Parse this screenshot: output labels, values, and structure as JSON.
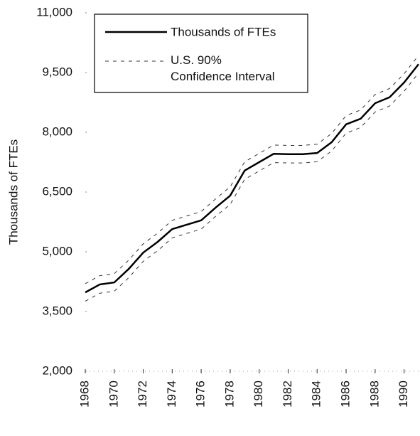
{
  "chart_data": {
    "type": "line",
    "y_label": "Thousands of FTEs",
    "x": [
      1968,
      1969,
      1970,
      1971,
      1972,
      1973,
      1974,
      1975,
      1976,
      1977,
      1978,
      1979,
      1980,
      1981,
      1982,
      1983,
      1984,
      1985,
      1986,
      1987,
      1988,
      1989,
      1990,
      1991
    ],
    "series": [
      {
        "name": "Thousands of FTEs",
        "color": "#000000",
        "values": [
          3980,
          4180,
          4230,
          4570,
          4980,
          5250,
          5570,
          5680,
          5790,
          6110,
          6410,
          7040,
          7250,
          7460,
          7450,
          7450,
          7480,
          7750,
          8200,
          8340,
          8730,
          8880,
          9250,
          9710
        ]
      }
    ],
    "confidence_interval": {
      "name": "U.S. 90%\nConfidence Interval",
      "color": "#333333",
      "upper": [
        4200,
        4400,
        4450,
        4790,
        5200,
        5470,
        5790,
        5900,
        6010,
        6330,
        6630,
        7260,
        7470,
        7680,
        7670,
        7670,
        7700,
        7970,
        8420,
        8560,
        8950,
        9100,
        9470,
        9930
      ],
      "lower": [
        3760,
        3960,
        4010,
        4350,
        4760,
        5030,
        5350,
        5460,
        5570,
        5890,
        6190,
        6820,
        7030,
        7240,
        7230,
        7230,
        7260,
        7530,
        7980,
        8120,
        8510,
        8660,
        9030,
        9490
      ]
    },
    "xlim": [
      1968,
      1991
    ],
    "xticks": [
      1968,
      1970,
      1972,
      1974,
      1976,
      1978,
      1980,
      1982,
      1984,
      1986,
      1988,
      1990
    ],
    "ylim": [
      2000,
      11000
    ],
    "yticks": [
      {
        "value": 2000,
        "label": "2,000"
      },
      {
        "value": 3500,
        "label": "3,500"
      },
      {
        "value": 5000,
        "label": "5,000"
      },
      {
        "value": 6500,
        "label": "6,500"
      },
      {
        "value": 8000,
        "label": "8,000"
      },
      {
        "value": 9500,
        "label": "9,500"
      },
      {
        "value": 11000,
        "label": "11,000"
      }
    ],
    "legend": "upper left"
  }
}
